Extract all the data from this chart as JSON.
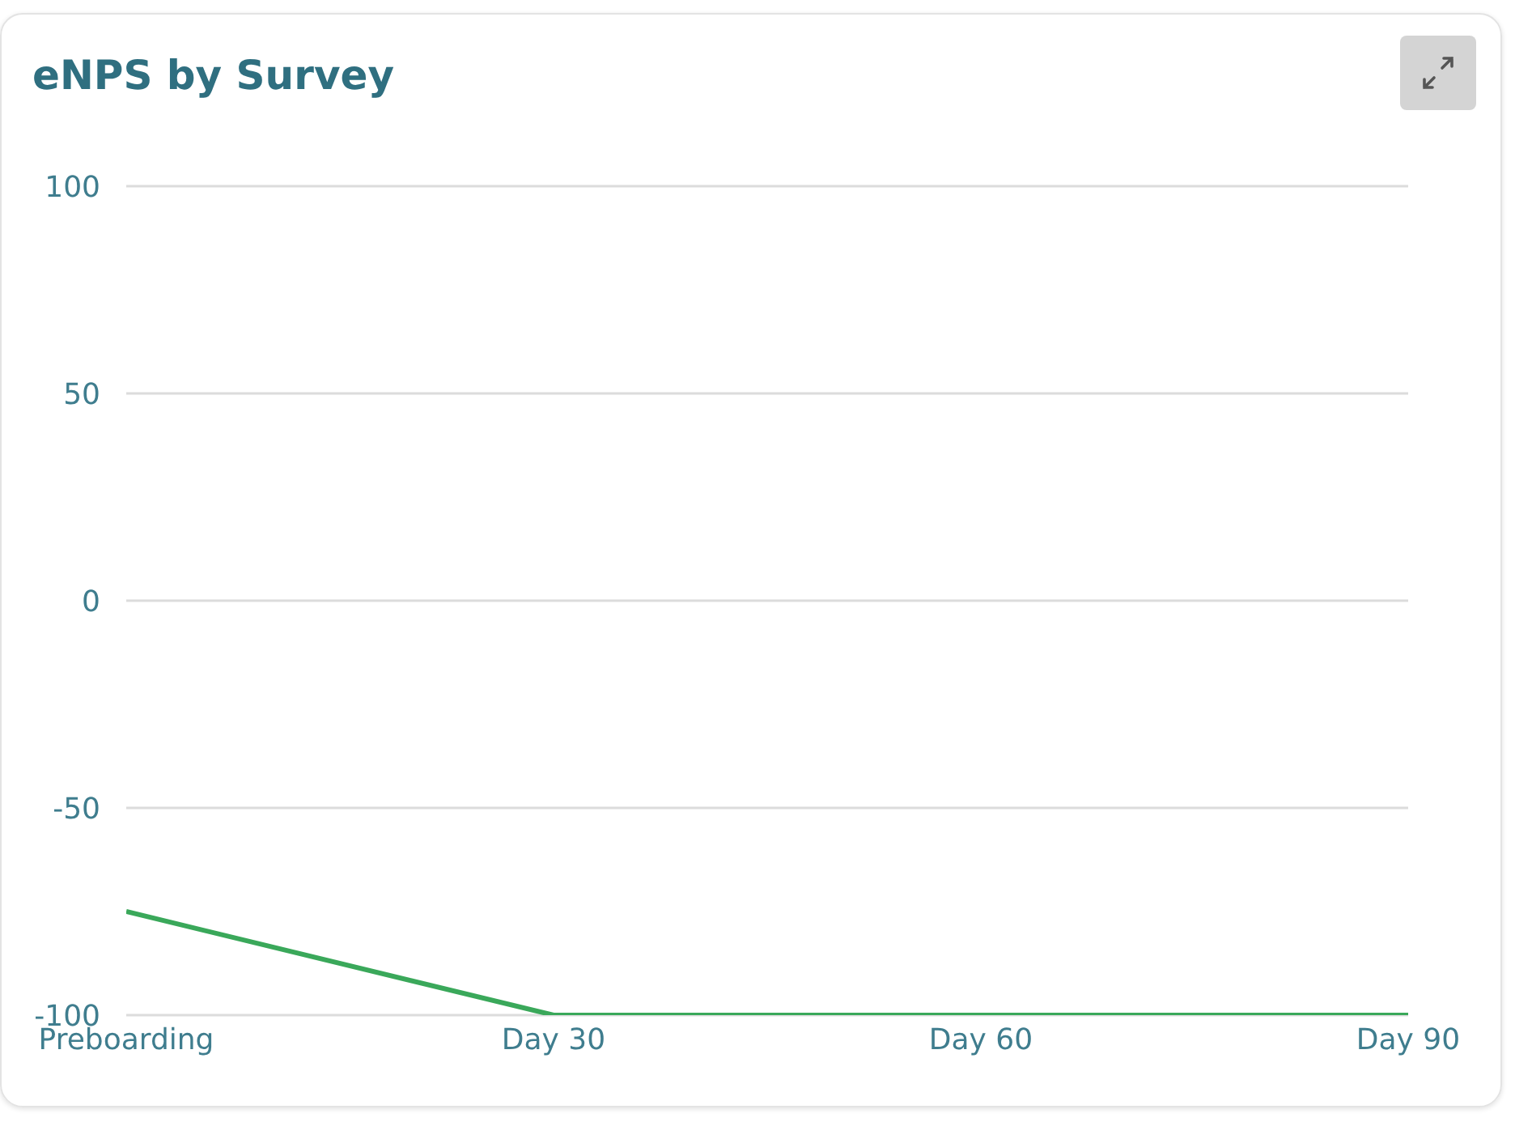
{
  "chart_data": {
    "type": "line",
    "title": "eNPS by Survey",
    "categories": [
      "Preboarding",
      "Day 30",
      "Day 60",
      "Day 90"
    ],
    "series": [
      {
        "color": "#3aa85a",
        "values": [
          -75,
          -100,
          -100,
          -100
        ]
      }
    ],
    "ylim": [
      -100,
      100
    ],
    "yticks": [
      -100,
      -50,
      0,
      50,
      100
    ],
    "grid": "y",
    "legend": false,
    "marker": "none",
    "line_style": "solid"
  }
}
